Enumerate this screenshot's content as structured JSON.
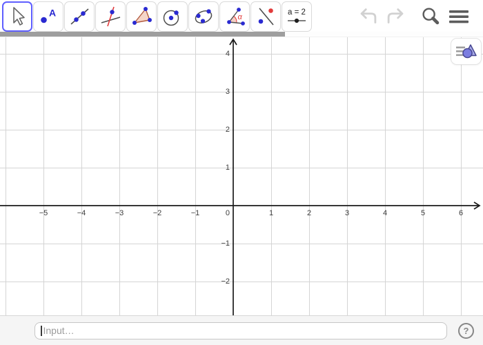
{
  "toolbar": {
    "selected_color": "#5e5eff",
    "tools": [
      {
        "name": "move",
        "selected": true
      },
      {
        "name": "point",
        "label": "A",
        "selected": false
      },
      {
        "name": "line",
        "selected": false
      },
      {
        "name": "perpendicular-line",
        "selected": false
      },
      {
        "name": "polygon",
        "selected": false
      },
      {
        "name": "circle-with-center-through-point",
        "selected": false
      },
      {
        "name": "ellipse",
        "selected": false
      },
      {
        "name": "angle",
        "alpha_label": "α",
        "selected": false
      },
      {
        "name": "reflect-about-line",
        "selected": false
      },
      {
        "name": "slider",
        "label": "a = 2",
        "selected": false
      }
    ],
    "action_icons": [
      "undo",
      "redo",
      "search",
      "menu"
    ]
  },
  "graph": {
    "x_ticks": [
      {
        "v": -5,
        "label": "−5"
      },
      {
        "v": -4,
        "label": "−4"
      },
      {
        "v": -3,
        "label": "−3"
      },
      {
        "v": -2,
        "label": "−2"
      },
      {
        "v": -1,
        "label": "−1"
      },
      {
        "v": 0,
        "label": "0"
      },
      {
        "v": 1,
        "label": "1"
      },
      {
        "v": 2,
        "label": "2"
      },
      {
        "v": 3,
        "label": "3"
      },
      {
        "v": 4,
        "label": "4"
      },
      {
        "v": 5,
        "label": "5"
      },
      {
        "v": 6,
        "label": "6"
      }
    ],
    "y_ticks": [
      {
        "v": 4,
        "label": "4"
      },
      {
        "v": 3,
        "label": "3"
      },
      {
        "v": 2,
        "label": "2"
      },
      {
        "v": 1,
        "label": "1"
      },
      {
        "v": -1,
        "label": "−1"
      },
      {
        "v": -2,
        "label": "−2"
      }
    ],
    "colors": {
      "grid": "#d4d4d4",
      "axis": "#1a1a1a"
    }
  },
  "stylebar": {
    "icon": "graphics-stylebar"
  },
  "input_bar": {
    "placeholder": "Input…",
    "help_label": "?"
  }
}
